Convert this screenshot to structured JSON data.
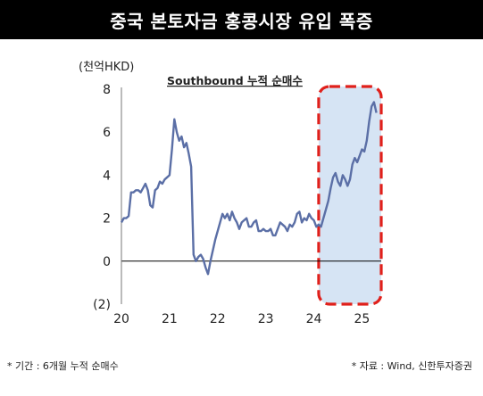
{
  "banner_title": "중국 본토자금 홍콩시장 유입 폭증",
  "unit_label": "(천억HKD)",
  "footnote_left": "* 기간 : 6개월 누적 순매수",
  "footnote_right": "* 자료 : Wind, 신한투자증권",
  "colors": {
    "line": "#5b6fa6",
    "highlight_fill": "#d6e4f4",
    "highlight_border": "#e0201b",
    "banner": "#000000"
  },
  "chart_data": {
    "type": "line",
    "title": "Southbound 누적 순매수",
    "xlabel": "",
    "ylabel": "(천억HKD)",
    "xlim": [
      20,
      25.4
    ],
    "ylim": [
      -2,
      8
    ],
    "x_ticks": [
      "20",
      "21",
      "22",
      "23",
      "24",
      "25"
    ],
    "y_ticks": [
      "(2)",
      "0",
      "2",
      "4",
      "6",
      "8"
    ],
    "grid": false,
    "highlight_region": [
      24.1,
      25.4
    ],
    "series": [
      {
        "x": [
          20.0,
          20.05,
          20.1,
          20.15,
          20.2,
          20.25,
          20.3,
          20.35,
          20.4,
          20.45,
          20.5,
          20.55,
          20.6,
          20.65,
          20.7,
          20.75,
          20.8,
          20.85,
          20.9,
          20.95,
          21.0,
          21.05,
          21.1,
          21.15,
          21.2,
          21.25,
          21.3,
          21.35,
          21.4,
          21.45,
          21.5,
          21.55,
          21.6,
          21.65,
          21.7,
          21.75,
          21.8,
          21.85,
          21.9,
          21.95,
          22.0,
          22.05,
          22.1,
          22.15,
          22.2,
          22.25,
          22.3,
          22.35,
          22.4,
          22.45,
          22.5,
          22.55,
          22.6,
          22.65,
          22.7,
          22.75,
          22.8,
          22.85,
          22.9,
          22.95,
          23.0,
          23.05,
          23.1,
          23.15,
          23.2,
          23.25,
          23.3,
          23.35,
          23.4,
          23.45,
          23.5,
          23.55,
          23.6,
          23.65,
          23.7,
          23.75,
          23.8,
          23.85,
          23.9,
          23.95,
          24.0,
          24.05,
          24.1,
          24.15,
          24.2,
          24.25,
          24.3,
          24.35,
          24.4,
          24.45,
          24.5,
          24.55,
          24.6,
          24.65,
          24.7,
          24.75,
          24.8,
          24.85,
          24.9,
          24.95,
          25.0,
          25.05,
          25.1,
          25.15,
          25.2,
          25.25,
          25.3
        ],
        "y": [
          1.8,
          2.0,
          2.0,
          2.1,
          3.2,
          3.2,
          3.3,
          3.3,
          3.2,
          3.4,
          3.6,
          3.3,
          2.6,
          2.5,
          3.3,
          3.4,
          3.7,
          3.6,
          3.8,
          3.9,
          4.0,
          5.2,
          6.6,
          6.0,
          5.6,
          5.8,
          5.3,
          5.5,
          5.0,
          4.4,
          0.3,
          0.0,
          0.2,
          0.3,
          0.1,
          -0.3,
          -0.6,
          0.0,
          0.5,
          1.0,
          1.4,
          1.8,
          2.2,
          2.0,
          2.2,
          1.9,
          2.3,
          2.0,
          1.8,
          1.5,
          1.8,
          1.9,
          2.0,
          1.6,
          1.6,
          1.8,
          1.9,
          1.4,
          1.4,
          1.5,
          1.4,
          1.4,
          1.5,
          1.2,
          1.2,
          1.5,
          1.8,
          1.7,
          1.6,
          1.4,
          1.7,
          1.6,
          1.8,
          2.2,
          2.3,
          1.8,
          2.0,
          1.9,
          2.2,
          2.0,
          1.9,
          1.6,
          1.7,
          1.6,
          2.0,
          2.4,
          2.8,
          3.4,
          3.9,
          4.1,
          3.7,
          3.5,
          4.0,
          3.8,
          3.5,
          3.8,
          4.5,
          4.8,
          4.6,
          4.9,
          5.2,
          5.1,
          5.6,
          6.5,
          7.2,
          7.4,
          6.9
        ]
      }
    ]
  }
}
